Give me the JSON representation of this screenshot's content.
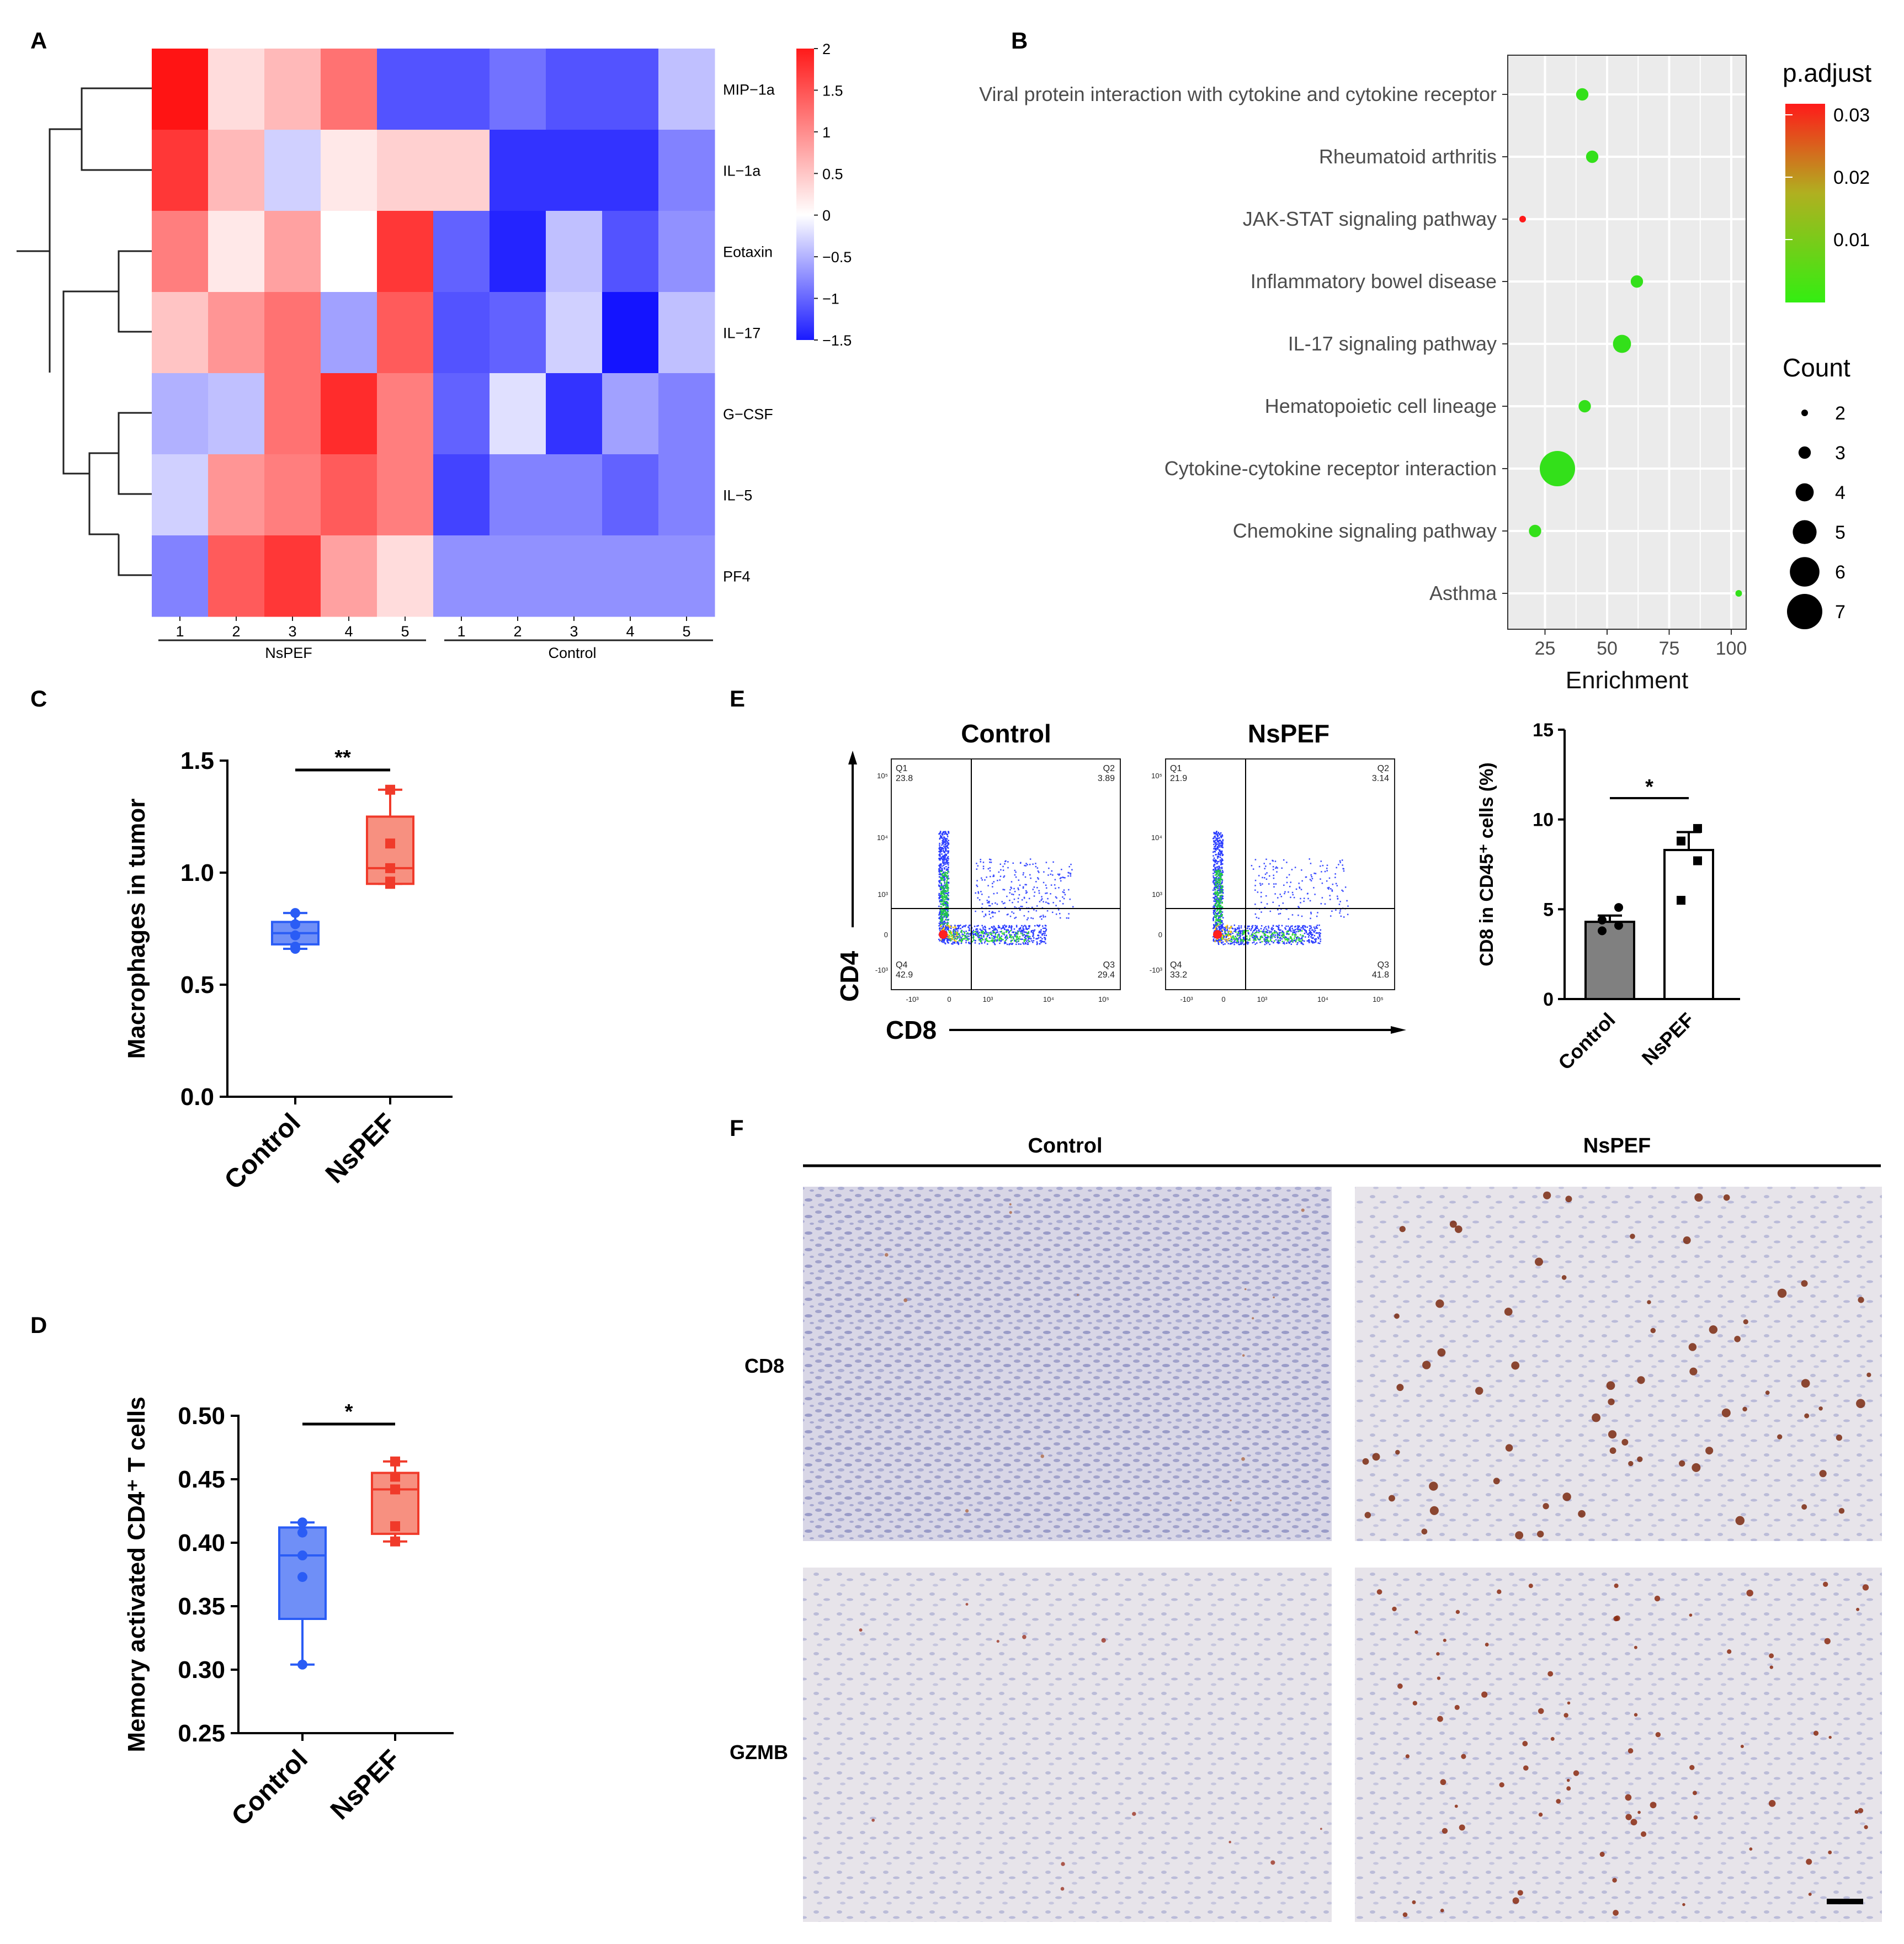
{
  "panels": {
    "A": "A",
    "B": "B",
    "C": "C",
    "D": "D",
    "E": "E",
    "F": "F"
  },
  "colors": {
    "red": "#ff2020",
    "blue": "#2030ff",
    "boxBlue": "#2a5cf5",
    "boxRed": "#f03a2a",
    "green": "#33e01a",
    "gray": "#808080"
  },
  "chart_data": [
    {
      "id": "A",
      "type": "heatmap",
      "rows": [
        "MIP−1a",
        "IL−1a",
        "Eotaxin",
        "IL−17",
        "G−CSF",
        "IL−5",
        "PF4"
      ],
      "columns": [
        "1",
        "2",
        "3",
        "4",
        "5",
        "1",
        "2",
        "3",
        "4",
        "5"
      ],
      "groups": [
        {
          "name": "NsPEF",
          "columns": [
            0,
            1,
            2,
            3,
            4
          ]
        },
        {
          "name": "Control",
          "columns": [
            5,
            6,
            7,
            8,
            9
          ]
        }
      ],
      "values": [
        [
          2.0,
          0.3,
          0.6,
          1.2,
          -1.1,
          -1.1,
          -0.9,
          -1.1,
          -1.1,
          -0.4
        ],
        [
          1.7,
          0.6,
          -0.3,
          0.2,
          0.4,
          0.4,
          -1.3,
          -1.3,
          -1.3,
          -0.8
        ],
        [
          1.1,
          0.2,
          0.8,
          0.0,
          1.7,
          -1.0,
          -1.4,
          -0.4,
          -1.1,
          -0.7
        ],
        [
          0.5,
          0.9,
          1.2,
          -0.6,
          1.4,
          -1.1,
          -1.0,
          -0.3,
          -1.5,
          -0.4
        ],
        [
          -0.5,
          -0.4,
          1.2,
          1.8,
          1.1,
          -1.0,
          -0.2,
          -1.3,
          -0.6,
          -0.8
        ],
        [
          -0.3,
          0.9,
          1.1,
          1.4,
          1.1,
          -1.2,
          -0.8,
          -0.8,
          -1.0,
          -0.8
        ],
        [
          -0.8,
          1.4,
          1.7,
          0.8,
          0.3,
          -0.7,
          -0.7,
          -0.7,
          -0.7,
          -0.7
        ]
      ],
      "colorbar": {
        "ticks": [
          "2",
          "1.5",
          "1",
          "0.5",
          "0",
          "−0.5",
          "−1",
          "−1.5"
        ],
        "range": [
          -1.5,
          2.0
        ]
      }
    },
    {
      "id": "B",
      "type": "scatter",
      "xlabel": "Enrichment",
      "xticks": [
        "25",
        "50",
        "75",
        "100"
      ],
      "xlim": [
        10,
        106
      ],
      "categories": [
        "Viral protein interaction with cytokine and cytokine receptor",
        "Rheumatoid arthritis",
        "JAK-STAT signaling pathway",
        "Inflammatory bowel disease",
        "IL-17 signaling pathway",
        "Hematopoietic cell lineage",
        "Cytokine-cytokine receptor interaction",
        "Chemokine signaling pathway",
        "Asthma"
      ],
      "enrichment": [
        40,
        44,
        16,
        62,
        56,
        41,
        30,
        21,
        103
      ],
      "count": [
        3,
        3,
        2,
        3,
        4,
        3,
        7,
        3,
        2
      ],
      "p_adjust": [
        0.001,
        0.001,
        0.032,
        0.001,
        0.001,
        0.001,
        0.001,
        0.001,
        0.001
      ],
      "legend_padjust": {
        "title": "p.adjust",
        "ticks": [
          "0.03",
          "0.02",
          "0.01"
        ]
      },
      "legend_count": {
        "title": "Count",
        "ticks": [
          "2",
          "3",
          "4",
          "5",
          "6",
          "7"
        ]
      }
    },
    {
      "id": "C",
      "type": "box",
      "ylabel": "Macrophages in tumor",
      "yticks": [
        "0.0",
        "0.5",
        "1.0",
        "1.5"
      ],
      "ylim": [
        0,
        1.5
      ],
      "categories": [
        "Control",
        "NsPEF"
      ],
      "boxes": [
        {
          "min": 0.66,
          "q1": 0.68,
          "median": 0.73,
          "q3": 0.78,
          "max": 0.82,
          "points": [
            0.66,
            0.67,
            0.72,
            0.77,
            0.82
          ]
        },
        {
          "min": 0.95,
          "q1": 0.95,
          "median": 1.02,
          "q3": 1.25,
          "max": 1.37,
          "points": [
            0.95,
            0.96,
            1.02,
            1.13,
            1.37
          ]
        }
      ],
      "significance": "**"
    },
    {
      "id": "D",
      "type": "box",
      "ylabel": "Memory activated CD4⁺ T cells",
      "yticks": [
        "0.25",
        "0.30",
        "0.35",
        "0.40",
        "0.45",
        "0.50"
      ],
      "ylim": [
        0.25,
        0.5
      ],
      "categories": [
        "Control",
        "NsPEF"
      ],
      "boxes": [
        {
          "min": 0.304,
          "q1": 0.34,
          "median": 0.39,
          "q3": 0.412,
          "max": 0.416,
          "points": [
            0.304,
            0.373,
            0.39,
            0.408,
            0.416
          ]
        },
        {
          "min": 0.401,
          "q1": 0.407,
          "median": 0.442,
          "q3": 0.455,
          "max": 0.464,
          "points": [
            0.401,
            0.413,
            0.442,
            0.452,
            0.464
          ]
        }
      ],
      "significance": "*"
    },
    {
      "id": "E-flow",
      "type": "scatter",
      "xlabel": "CD8",
      "ylabel": "CD4",
      "plots": [
        {
          "title": "Control",
          "quadrants": {
            "Q1": "23.8",
            "Q2": "3.89",
            "Q3": "29.4",
            "Q4": "42.9"
          }
        },
        {
          "title": "NsPEF",
          "quadrants": {
            "Q1": "21.9",
            "Q2": "3.14",
            "Q3": "41.8",
            "Q4": "33.2"
          }
        }
      ],
      "yticks": [
        "10⁵",
        "10⁴",
        "10³",
        "0",
        "-10³"
      ],
      "xticks": [
        "-10³",
        "0",
        "10³",
        "10⁴",
        "10⁵"
      ]
    },
    {
      "id": "E-bar",
      "type": "bar",
      "ylabel": "CD8 in CD45⁺ cells (%)",
      "yticks": [
        "0",
        "5",
        "10",
        "15"
      ],
      "ylim": [
        0,
        15
      ],
      "categories": [
        "Control",
        "NsPEF"
      ],
      "values": [
        4.3,
        8.3
      ],
      "errors": [
        0.35,
        1.0
      ],
      "points": [
        [
          3.8,
          4.1,
          4.4,
          5.1
        ],
        [
          5.5,
          7.7,
          8.8,
          9.5
        ]
      ],
      "significance": "*"
    }
  ],
  "ihc": {
    "columns": [
      "Control",
      "NsPEF"
    ],
    "rows": [
      "CD8",
      "GZMB"
    ]
  }
}
